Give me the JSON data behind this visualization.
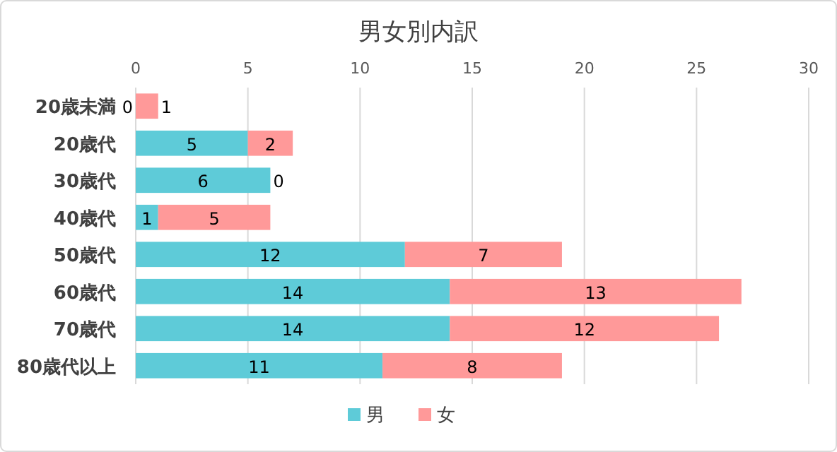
{
  "chart_data": {
    "type": "bar",
    "orientation": "horizontal",
    "stacked": true,
    "title": "男女別内訳",
    "categories": [
      "20歳未満",
      "20歳代",
      "30歳代",
      "40歳代",
      "50歳代",
      "60歳代",
      "70歳代",
      "80歳代以上"
    ],
    "series": [
      {
        "name": "男",
        "color": "#5ecbd8",
        "values": [
          0,
          5,
          6,
          1,
          12,
          14,
          14,
          11
        ]
      },
      {
        "name": "女",
        "color": "#ff9999",
        "values": [
          1,
          2,
          0,
          5,
          7,
          13,
          12,
          8
        ]
      }
    ],
    "xlim": [
      0,
      30
    ],
    "xticks": [
      0,
      5,
      10,
      15,
      20,
      25,
      30
    ],
    "grid": "x",
    "legend": "bottom",
    "data_labels": true
  }
}
